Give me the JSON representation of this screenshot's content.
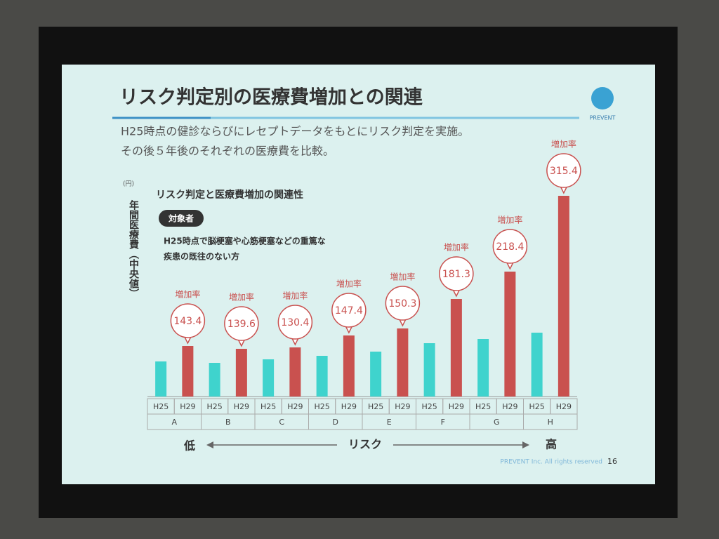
{
  "chart_data": {
    "type": "bar",
    "title": "リスク判定別の医療費増加との関連",
    "subtitle": [
      "H25時点の健診ならびにレセプトデータをもとにリスク判定を実施。",
      "その後５年後のそれぞれの医療費を比較。"
    ],
    "chart_title": "リスク判定と医療費増加の関連性",
    "y_unit": "(円)",
    "y_label": "年間医療費（中央値）",
    "badge": "対象者",
    "note": [
      "H25時点で脳梗塞や心筋梗塞などの重篤な",
      "疾患の既往のない方"
    ],
    "categories": [
      "A",
      "B",
      "C",
      "D",
      "E",
      "F",
      "G",
      "H"
    ],
    "series": [
      {
        "name": "H25",
        "color": "#3fd3cd",
        "values": [
          50,
          48,
          53,
          58,
          64,
          76,
          82,
          91
        ]
      },
      {
        "name": "H29",
        "color": "#c9514f",
        "values": [
          72,
          68,
          70,
          87,
          97,
          139,
          178,
          286
        ]
      }
    ],
    "growth_label": "増加率",
    "growth_rates": [
      143.4,
      139.6,
      130.4,
      147.4,
      150.3,
      181.3,
      218.4,
      315.4
    ],
    "ylim": [
      0,
      300
    ],
    "x_arrow": {
      "low": "低",
      "middle": "リスク",
      "high": "高"
    },
    "logo": "PREVENT",
    "footer": "PREVENT Inc. All rights reserved",
    "page": "16"
  }
}
